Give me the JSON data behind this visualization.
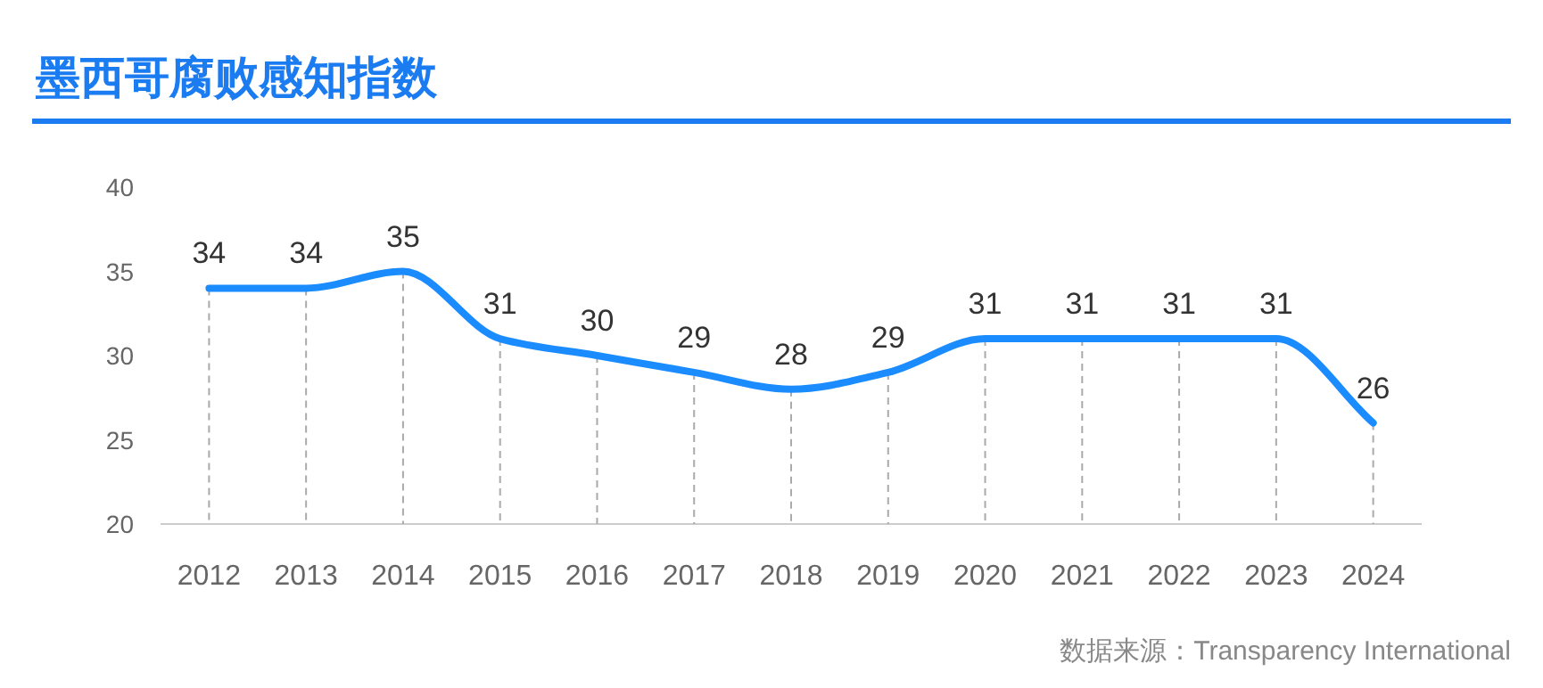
{
  "chart_data": {
    "type": "line",
    "title": "墨西哥腐败感知指数",
    "categories": [
      "2012",
      "2013",
      "2014",
      "2015",
      "2016",
      "2017",
      "2018",
      "2019",
      "2020",
      "2021",
      "2022",
      "2023",
      "2024"
    ],
    "series": [
      {
        "color": "#1a8cff",
        "values": [
          34,
          34,
          35,
          31,
          30,
          29,
          28,
          29,
          31,
          31,
          31,
          31,
          26
        ]
      }
    ],
    "ylim": [
      20,
      40
    ],
    "yticks": [
      20,
      25,
      30,
      35,
      40
    ],
    "grid": "x",
    "data_labels": true,
    "marker": "none",
    "line_style": "solid",
    "annotations": [
      "数据来源：Transparency International"
    ]
  }
}
